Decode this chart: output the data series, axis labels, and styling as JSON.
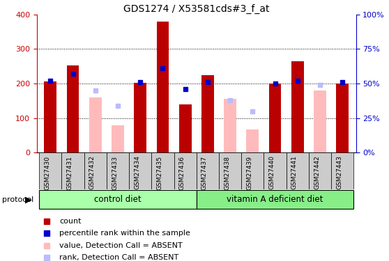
{
  "title": "GDS1274 / X53581cds#3_f_at",
  "samples": [
    "GSM27430",
    "GSM27431",
    "GSM27432",
    "GSM27433",
    "GSM27434",
    "GSM27435",
    "GSM27436",
    "GSM27437",
    "GSM27438",
    "GSM27439",
    "GSM27440",
    "GSM27441",
    "GSM27442",
    "GSM27443"
  ],
  "count_values": [
    207,
    252,
    null,
    null,
    203,
    380,
    140,
    225,
    null,
    null,
    200,
    265,
    null,
    200
  ],
  "percentile_values": [
    52,
    57,
    null,
    null,
    51,
    61,
    46,
    51,
    null,
    null,
    50,
    52,
    null,
    51
  ],
  "absent_value": [
    null,
    null,
    160,
    80,
    null,
    null,
    null,
    null,
    155,
    68,
    null,
    null,
    180,
    null
  ],
  "absent_rank": [
    null,
    null,
    45,
    34,
    null,
    null,
    null,
    null,
    38,
    30,
    null,
    null,
    49,
    null
  ],
  "bar_width": 0.55,
  "count_color": "#bb0000",
  "percentile_color": "#0000cc",
  "absent_value_color": "#ffbbbb",
  "absent_rank_color": "#bbbbff",
  "ylim_left": [
    0,
    400
  ],
  "ylim_right": [
    0,
    100
  ],
  "yticks_left": [
    0,
    100,
    200,
    300,
    400
  ],
  "yticks_right": [
    0,
    25,
    50,
    75,
    100
  ],
  "ytick_labels_right": [
    "0%",
    "25%",
    "50%",
    "75%",
    "100%"
  ],
  "ytick_color_left": "#cc0000",
  "ytick_color_right": "#0000cc",
  "grid_color": "black",
  "grid_values": [
    100,
    200,
    300
  ],
  "tick_area_color": "#cccccc",
  "group_color_control": "#aaffaa",
  "group_color_vitA": "#88ee88",
  "legend": [
    {
      "label": "count",
      "color": "#bb0000"
    },
    {
      "label": "percentile rank within the sample",
      "color": "#0000cc"
    },
    {
      "label": "value, Detection Call = ABSENT",
      "color": "#ffbbbb"
    },
    {
      "label": "rank, Detection Call = ABSENT",
      "color": "#bbbbff"
    }
  ]
}
